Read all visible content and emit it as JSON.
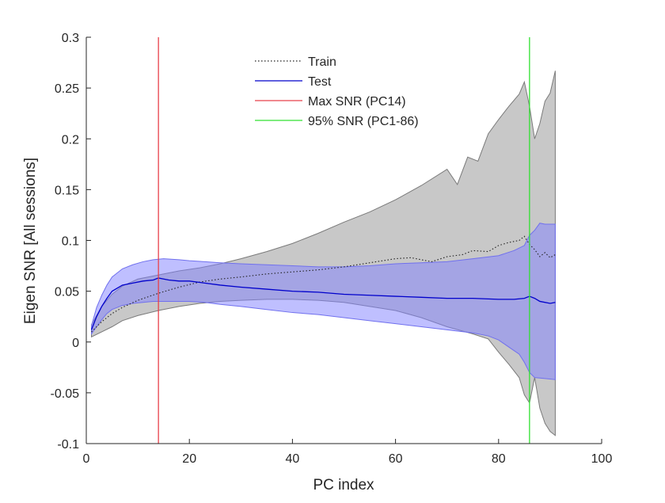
{
  "chart_data": {
    "type": "line",
    "title": "",
    "xlabel": "PC index",
    "ylabel": "Eigen SNR [All sessions]",
    "xlim": [
      0,
      100
    ],
    "ylim": [
      -0.1,
      0.3
    ],
    "xticks": [
      0,
      20,
      40,
      60,
      80,
      100
    ],
    "xtick_labels": [
      "0",
      "20",
      "40",
      "60",
      "80",
      "100"
    ],
    "yticks": [
      -0.1,
      -0.05,
      0,
      0.05,
      0.1,
      0.15,
      0.2,
      0.25,
      0.3
    ],
    "ytick_labels": [
      "-0.1",
      "-0.05",
      "0",
      "0.05",
      "0.1",
      "0.15",
      "0.2",
      "0.25",
      "0.3"
    ],
    "grid": false,
    "legend_position": "top-center",
    "series": [
      {
        "name": "Train",
        "style": "dotted",
        "color": "#222222",
        "band_color": "#c8c8c8",
        "band_edge": "#7a7a7a",
        "mean": [
          [
            1,
            0.01
          ],
          [
            3,
            0.02
          ],
          [
            5,
            0.028
          ],
          [
            7,
            0.034
          ],
          [
            10,
            0.041
          ],
          [
            14,
            0.048
          ],
          [
            18,
            0.054
          ],
          [
            22,
            0.059
          ],
          [
            26,
            0.062
          ],
          [
            30,
            0.064
          ],
          [
            35,
            0.067
          ],
          [
            40,
            0.069
          ],
          [
            45,
            0.071
          ],
          [
            50,
            0.074
          ],
          [
            55,
            0.078
          ],
          [
            60,
            0.082
          ],
          [
            63,
            0.083
          ],
          [
            65,
            0.081
          ],
          [
            67,
            0.079
          ],
          [
            70,
            0.084
          ],
          [
            73,
            0.086
          ],
          [
            75,
            0.09
          ],
          [
            78,
            0.089
          ],
          [
            80,
            0.095
          ],
          [
            82,
            0.098
          ],
          [
            84,
            0.1
          ],
          [
            85,
            0.104
          ],
          [
            86,
            0.096
          ],
          [
            87,
            0.091
          ],
          [
            88,
            0.084
          ],
          [
            89,
            0.088
          ],
          [
            90,
            0.083
          ],
          [
            91,
            0.086
          ]
        ],
        "upper": [
          [
            1,
            0.017
          ],
          [
            3,
            0.035
          ],
          [
            5,
            0.047
          ],
          [
            7,
            0.055
          ],
          [
            10,
            0.062
          ],
          [
            14,
            0.066
          ],
          [
            18,
            0.07
          ],
          [
            22,
            0.073
          ],
          [
            26,
            0.077
          ],
          [
            30,
            0.082
          ],
          [
            35,
            0.089
          ],
          [
            40,
            0.097
          ],
          [
            45,
            0.107
          ],
          [
            50,
            0.118
          ],
          [
            55,
            0.128
          ],
          [
            60,
            0.14
          ],
          [
            65,
            0.154
          ],
          [
            70,
            0.17
          ],
          [
            72,
            0.155
          ],
          [
            74,
            0.182
          ],
          [
            76,
            0.178
          ],
          [
            78,
            0.205
          ],
          [
            80,
            0.219
          ],
          [
            82,
            0.232
          ],
          [
            84,
            0.244
          ],
          [
            85,
            0.256
          ],
          [
            86,
            0.232
          ],
          [
            87,
            0.2
          ],
          [
            88,
            0.215
          ],
          [
            89,
            0.237
          ],
          [
            90,
            0.245
          ],
          [
            91,
            0.267
          ]
        ],
        "lower": [
          [
            1,
            0.005
          ],
          [
            3,
            0.01
          ],
          [
            5,
            0.015
          ],
          [
            7,
            0.021
          ],
          [
            10,
            0.026
          ],
          [
            14,
            0.031
          ],
          [
            18,
            0.035
          ],
          [
            22,
            0.038
          ],
          [
            26,
            0.04
          ],
          [
            30,
            0.041
          ],
          [
            35,
            0.042
          ],
          [
            40,
            0.042
          ],
          [
            45,
            0.041
          ],
          [
            50,
            0.039
          ],
          [
            55,
            0.035
          ],
          [
            60,
            0.031
          ],
          [
            65,
            0.024
          ],
          [
            70,
            0.015
          ],
          [
            75,
            0.008
          ],
          [
            78,
            0.003
          ],
          [
            80,
            -0.01
          ],
          [
            82,
            -0.022
          ],
          [
            84,
            -0.035
          ],
          [
            85,
            -0.052
          ],
          [
            86,
            -0.06
          ],
          [
            87,
            -0.035
          ],
          [
            88,
            -0.065
          ],
          [
            89,
            -0.08
          ],
          [
            90,
            -0.088
          ],
          [
            91,
            -0.092
          ]
        ]
      },
      {
        "name": "Test",
        "style": "solid",
        "color": "#0000cc",
        "band_color": "#8080ff",
        "band_edge": "#7070ee",
        "mean": [
          [
            1,
            0.012
          ],
          [
            2,
            0.025
          ],
          [
            3,
            0.035
          ],
          [
            4,
            0.043
          ],
          [
            5,
            0.05
          ],
          [
            7,
            0.056
          ],
          [
            9,
            0.058
          ],
          [
            11,
            0.06
          ],
          [
            13,
            0.061
          ],
          [
            14,
            0.063
          ],
          [
            16,
            0.061
          ],
          [
            18,
            0.06
          ],
          [
            20,
            0.06
          ],
          [
            23,
            0.058
          ],
          [
            26,
            0.056
          ],
          [
            30,
            0.054
          ],
          [
            35,
            0.052
          ],
          [
            40,
            0.05
          ],
          [
            45,
            0.049
          ],
          [
            50,
            0.047
          ],
          [
            55,
            0.046
          ],
          [
            60,
            0.045
          ],
          [
            65,
            0.044
          ],
          [
            70,
            0.043
          ],
          [
            75,
            0.043
          ],
          [
            80,
            0.042
          ],
          [
            83,
            0.042
          ],
          [
            85,
            0.043
          ],
          [
            86,
            0.045
          ],
          [
            87,
            0.043
          ],
          [
            88,
            0.04
          ],
          [
            90,
            0.038
          ],
          [
            91,
            0.039
          ]
        ],
        "upper": [
          [
            1,
            0.016
          ],
          [
            2,
            0.034
          ],
          [
            3,
            0.046
          ],
          [
            4,
            0.056
          ],
          [
            5,
            0.064
          ],
          [
            7,
            0.072
          ],
          [
            9,
            0.076
          ],
          [
            11,
            0.079
          ],
          [
            13,
            0.081
          ],
          [
            15,
            0.082
          ],
          [
            18,
            0.081
          ],
          [
            20,
            0.08
          ],
          [
            23,
            0.079
          ],
          [
            26,
            0.078
          ],
          [
            30,
            0.077
          ],
          [
            35,
            0.076
          ],
          [
            40,
            0.075
          ],
          [
            45,
            0.074
          ],
          [
            50,
            0.074
          ],
          [
            55,
            0.075
          ],
          [
            60,
            0.077
          ],
          [
            65,
            0.078
          ],
          [
            70,
            0.079
          ],
          [
            75,
            0.082
          ],
          [
            80,
            0.085
          ],
          [
            83,
            0.09
          ],
          [
            85,
            0.095
          ],
          [
            86,
            0.105
          ],
          [
            87,
            0.11
          ],
          [
            88,
            0.117
          ],
          [
            89,
            0.116
          ],
          [
            91,
            0.116
          ]
        ],
        "lower": [
          [
            1,
            0.008
          ],
          [
            2,
            0.015
          ],
          [
            3,
            0.022
          ],
          [
            4,
            0.028
          ],
          [
            5,
            0.032
          ],
          [
            7,
            0.036
          ],
          [
            9,
            0.038
          ],
          [
            11,
            0.039
          ],
          [
            13,
            0.04
          ],
          [
            15,
            0.04
          ],
          [
            18,
            0.04
          ],
          [
            20,
            0.04
          ],
          [
            23,
            0.039
          ],
          [
            26,
            0.037
          ],
          [
            30,
            0.035
          ],
          [
            35,
            0.032
          ],
          [
            40,
            0.029
          ],
          [
            45,
            0.027
          ],
          [
            50,
            0.024
          ],
          [
            55,
            0.021
          ],
          [
            60,
            0.018
          ],
          [
            65,
            0.015
          ],
          [
            70,
            0.012
          ],
          [
            75,
            0.009
          ],
          [
            78,
            0.006
          ],
          [
            80,
            0.002
          ],
          [
            82,
            -0.005
          ],
          [
            84,
            -0.012
          ],
          [
            85,
            -0.02
          ],
          [
            86,
            -0.03
          ],
          [
            87,
            -0.035
          ],
          [
            89,
            -0.036
          ],
          [
            91,
            -0.037
          ]
        ]
      },
      {
        "name": "Max SNR (PC14)",
        "style": "vline",
        "color": "#e8404a",
        "x": 14
      },
      {
        "name": "95% SNR (PC1-86)",
        "style": "vline",
        "color": "#30e030",
        "x": 86
      }
    ]
  }
}
